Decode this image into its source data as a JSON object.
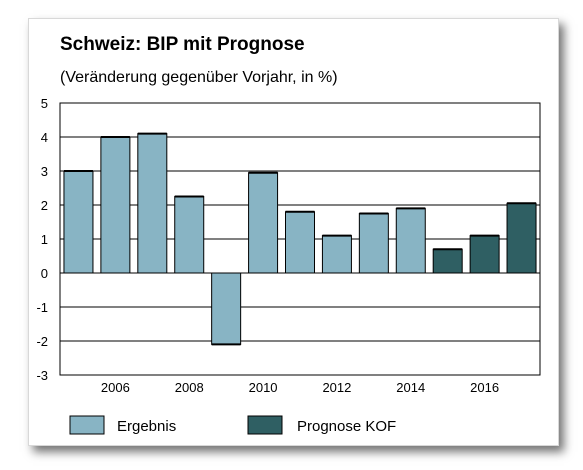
{
  "chart_data": {
    "type": "bar",
    "title": "Schweiz: BIP mit Prognose",
    "subtitle": "(Veränderung gegenüber Vorjahr, in %)",
    "xlabel": "",
    "ylabel": "",
    "ylim": [
      -3,
      5
    ],
    "yticks": [
      "5",
      "4",
      "3",
      "2",
      "1",
      "0",
      "-1",
      "-2",
      "-3"
    ],
    "xticks": [
      "2006",
      "2008",
      "2010",
      "2012",
      "2014",
      "2016"
    ],
    "grid": true,
    "categories": [
      2005,
      2006,
      2007,
      2008,
      2009,
      2010,
      2011,
      2012,
      2013,
      2014,
      2015,
      2016,
      2017
    ],
    "values": [
      3.0,
      4.0,
      4.1,
      2.25,
      -2.1,
      2.95,
      1.8,
      1.1,
      1.75,
      1.9,
      0.7,
      1.1,
      2.05
    ],
    "series": [
      {
        "name": "Ergebnis",
        "color": "#88b4c4",
        "categories": [
          2005,
          2006,
          2007,
          2008,
          2009,
          2010,
          2011,
          2012,
          2013,
          2014
        ]
      },
      {
        "name": "Prognose KOF",
        "color": "#2f5f63",
        "categories": [
          2015,
          2016,
          2017
        ]
      }
    ],
    "legend": "bottom"
  }
}
